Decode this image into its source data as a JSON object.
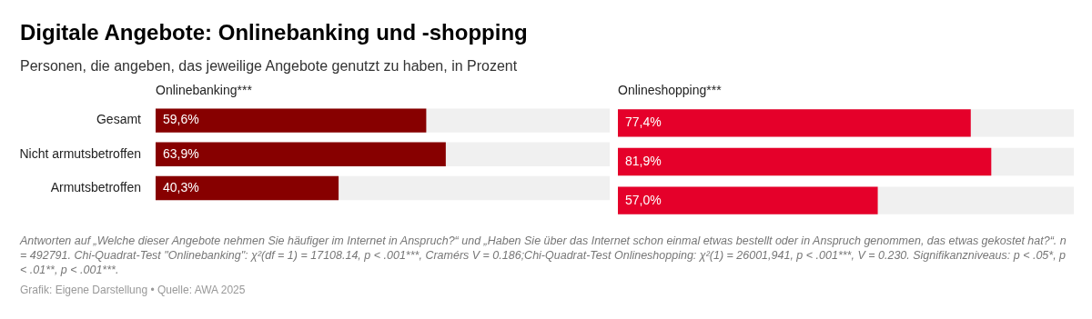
{
  "chart_data": [
    {
      "type": "bar",
      "orientation": "horizontal",
      "title": "Digitale Angebote: Onlinebanking und -shopping",
      "subtitle": "Personen, die angeben, das jeweilige Angebote genutzt zu haben, in Prozent",
      "categories": [
        "Gesamt",
        "Nicht armutsbetroffen",
        "Armutsbetroffen"
      ],
      "xlim": [
        0,
        100
      ],
      "tick_labels": "y",
      "series": [
        {
          "name": "Onlinebanking***",
          "color": "#870000",
          "values": [
            59.6,
            63.9,
            40.3
          ],
          "value_labels": [
            "59,6%",
            "63,9%",
            "40,3%"
          ]
        }
      ],
      "annotations": [
        "Antworten auf „Welche dieser Angebote nehmen Sie häufiger im Internet in Anspruch?“ und „Haben Sie über das Internet schon einmal etwas bestellt oder in Anspruch genommen, das etwas gekostet hat?“. n = 492791. Chi-Quadrat-Test \"Onlinebanking\": χ²(df = 1) = 17108.14, p < .001***, Cramérs V = 0.186;Chi-Quadrat-Test Onlineshopping: χ²(1) = 26001,941, p < .001***, V = 0.230. Signifikanzniveaus: p < .05*, p < .01**, p < .001***.",
        "Grafik: Eigene Darstellung • Quelle: AWA 2025"
      ]
    },
    {
      "type": "bar",
      "orientation": "horizontal",
      "categories": [
        null,
        null,
        null
      ],
      "xlim": [
        0,
        100
      ],
      "tick_labels": false,
      "series": [
        {
          "name": "Onlineshopping***",
          "color": "#e5002a",
          "values": [
            77.4,
            81.9,
            57.0
          ],
          "value_labels": [
            "77,4%",
            "81,9%",
            "57,0%"
          ]
        }
      ]
    }
  ]
}
